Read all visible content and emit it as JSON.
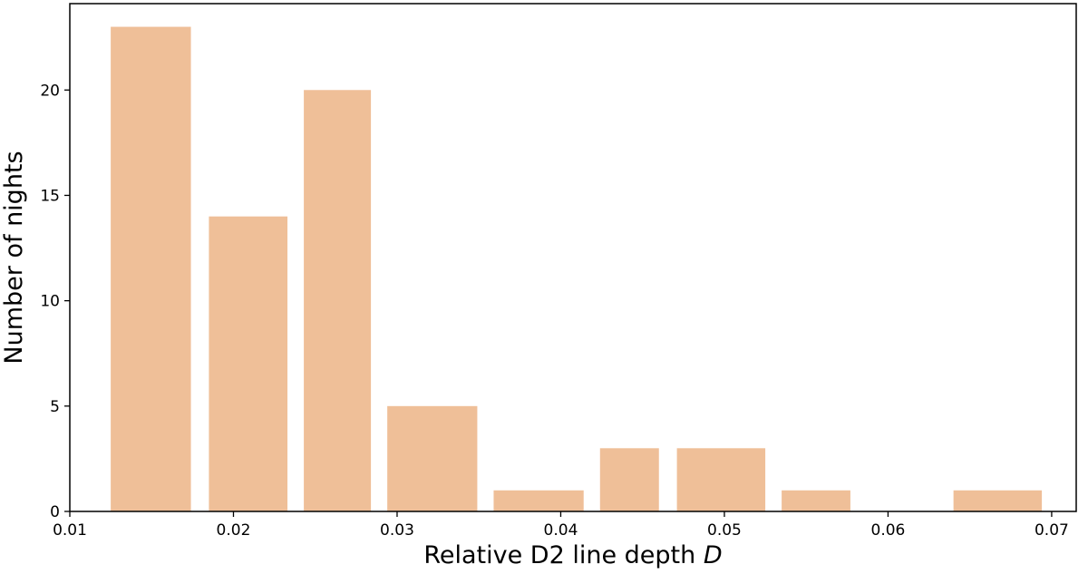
{
  "chart_data": {
    "type": "bar",
    "title": "",
    "xlabel": "Relative D2 line depth",
    "xlabel_symbol": "D",
    "ylabel": "Number of nights",
    "xlim": [
      0.01,
      0.0715
    ],
    "ylim": [
      0,
      24.1
    ],
    "xticks": [
      "0.01",
      "0.02",
      "0.03",
      "0.04",
      "0.05",
      "0.06",
      "0.07"
    ],
    "yticks": [
      "0",
      "5",
      "10",
      "15",
      "20"
    ],
    "bar_color": "#efbf98",
    "bars": [
      {
        "x0": 0.0125,
        "x1": 0.0174,
        "value": 23
      },
      {
        "x0": 0.0185,
        "x1": 0.0233,
        "value": 14
      },
      {
        "x0": 0.0243,
        "x1": 0.0284,
        "value": 20
      },
      {
        "x0": 0.0294,
        "x1": 0.0349,
        "value": 5
      },
      {
        "x0": 0.0359,
        "x1": 0.0414,
        "value": 1
      },
      {
        "x0": 0.0424,
        "x1": 0.046,
        "value": 3
      },
      {
        "x0": 0.0471,
        "x1": 0.0525,
        "value": 3
      },
      {
        "x0": 0.0535,
        "x1": 0.0577,
        "value": 1
      },
      {
        "x0": 0.064,
        "x1": 0.0694,
        "value": 1
      }
    ],
    "grid": false,
    "legend": "none"
  }
}
